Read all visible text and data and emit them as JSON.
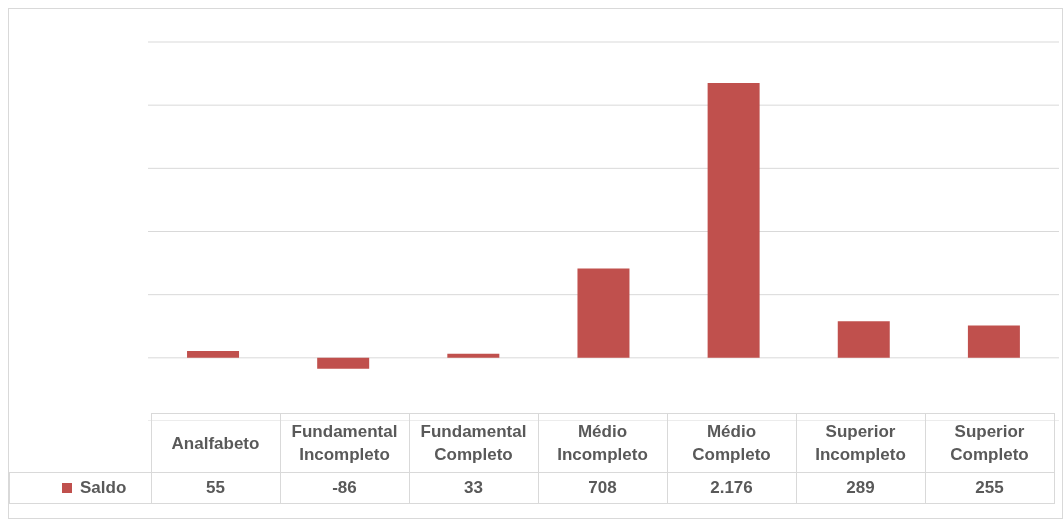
{
  "chart_data": {
    "type": "bar",
    "categories": [
      "Analfabeto",
      "Fundamental Incompleto",
      "Fundamental Completo",
      "Médio Incompleto",
      "Médio Completo",
      "Superior Incompleto",
      "Superior Completo"
    ],
    "series": [
      {
        "name": "Saldo",
        "color": "#c0504d",
        "values": [
          55,
          -86,
          33,
          708,
          2176,
          289,
          255
        ],
        "value_labels": [
          "55",
          "-86",
          "33",
          "708",
          "2.176",
          "289",
          "255"
        ]
      }
    ],
    "ylim": [
      -500,
      2500
    ],
    "yticks": [
      {
        "value": -500,
        "label": null
      },
      {
        "value": 0,
        "label": null
      },
      {
        "value": 500,
        "label": null
      },
      {
        "value": 1000,
        "label": null
      },
      {
        "value": 1500,
        "label": null
      },
      {
        "value": 2000,
        "label": null
      },
      {
        "value": 2500,
        "label": null
      }
    ],
    "grid": "y",
    "legend": "bottom left"
  }
}
